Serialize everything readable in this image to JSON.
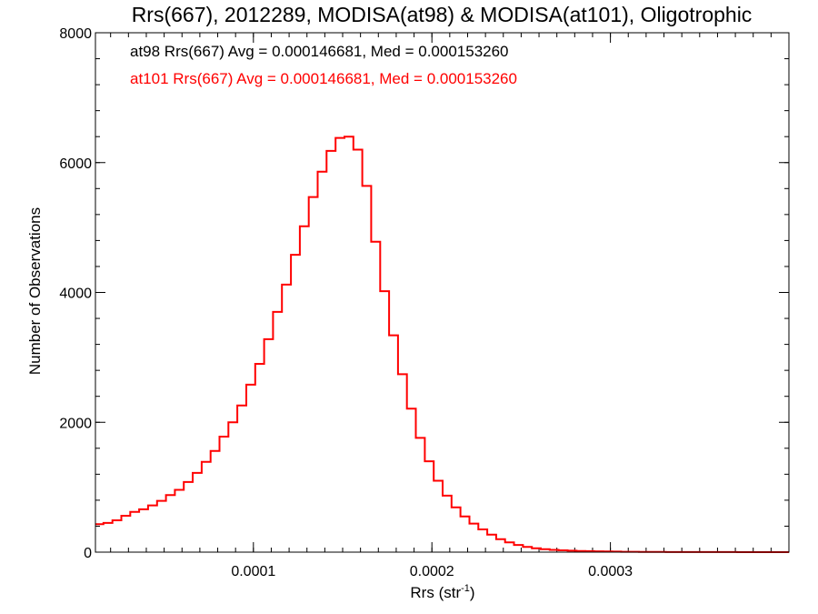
{
  "chart_data": {
    "type": "histogram-step",
    "title": "Rrs(667), 2012289, MODISA(at98) & MODISA(at101), Oligotrophic",
    "xlabel": "Rrs (str",
    "xlabel_sup": "-1",
    "xlabel_end": ")",
    "ylabel": "Number of Observations",
    "xlim": [
      1.15e-05,
      0.0004
    ],
    "ylim": [
      0,
      8000
    ],
    "x_ticks": [
      {
        "value": 0.0001,
        "label": "0.0001"
      },
      {
        "value": 0.0002,
        "label": "0.0002"
      },
      {
        "value": 0.0003,
        "label": "0.0003"
      }
    ],
    "x_minor_step": 1e-05,
    "y_ticks": [
      {
        "value": 0,
        "label": "0"
      },
      {
        "value": 2000,
        "label": "2000"
      },
      {
        "value": 4000,
        "label": "4000"
      },
      {
        "value": 6000,
        "label": "6000"
      },
      {
        "value": 8000,
        "label": "8000"
      }
    ],
    "y_minor_step": 400,
    "annotations": [
      {
        "text": "at98 Rrs(667) Avg = 0.000146681, Med = 0.000153260",
        "color": "#000000"
      },
      {
        "text": "at101 Rrs(667) Avg = 0.000146681, Med = 0.000153260",
        "color": "#ff0000"
      }
    ],
    "series": [
      {
        "color": "#ff0000",
        "x": [
          1.15e-05,
          1.6e-05,
          2.1e-05,
          2.6e-05,
          3.1e-05,
          3.6e-05,
          4.1e-05,
          4.6e-05,
          5.1e-05,
          5.6e-05,
          6.1e-05,
          6.6e-05,
          7.1e-05,
          7.6e-05,
          8.1e-05,
          8.6e-05,
          9.1e-05,
          9.6e-05,
          0.000101,
          0.000106,
          0.000111,
          0.000116,
          0.000121,
          0.000126,
          0.000131,
          0.000136,
          0.000141,
          0.000146,
          0.000151,
          0.000156,
          0.000161,
          0.000166,
          0.000171,
          0.000176,
          0.000181,
          0.000186,
          0.000191,
          0.000196,
          0.000201,
          0.000206,
          0.000211,
          0.000216,
          0.000221,
          0.000226,
          0.000231,
          0.000236,
          0.000241,
          0.000246,
          0.000251,
          0.000256,
          0.000261,
          0.000266,
          0.000271,
          0.000276,
          0.000281,
          0.000286,
          0.000291,
          0.000296,
          0.000301,
          0.000306,
          0.000311,
          0.000316,
          0.000321,
          0.000331,
          0.000341,
          0.000351,
          0.000361,
          0.000371,
          0.000381,
          0.000391,
          0.0004
        ],
        "y": [
          430,
          450,
          490,
          560,
          620,
          660,
          720,
          790,
          880,
          960,
          1080,
          1220,
          1390,
          1560,
          1780,
          2000,
          2260,
          2580,
          2900,
          3280,
          3700,
          4120,
          4580,
          5020,
          5470,
          5860,
          6180,
          6380,
          6400,
          6200,
          5640,
          4780,
          4020,
          3340,
          2740,
          2210,
          1760,
          1400,
          1100,
          870,
          690,
          550,
          440,
          350,
          270,
          200,
          150,
          110,
          80,
          60,
          45,
          35,
          28,
          22,
          18,
          15,
          12,
          10,
          8,
          6,
          5,
          4,
          3,
          2,
          2,
          1,
          1,
          0,
          0,
          0,
          0
        ]
      }
    ]
  }
}
